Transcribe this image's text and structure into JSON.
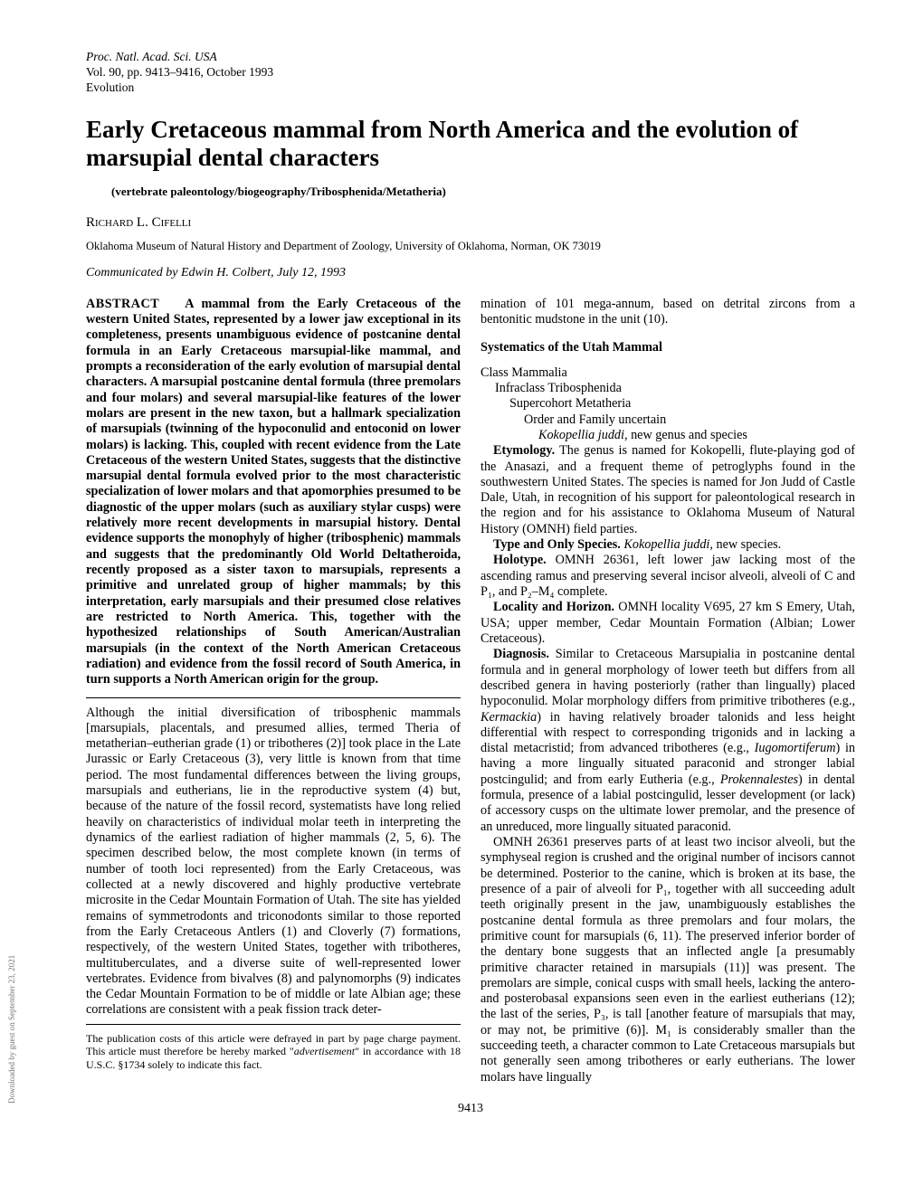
{
  "header": {
    "journal": "Proc. Natl. Acad. Sci. USA",
    "volume": "Vol. 90, pp. 9413–9416, October 1993",
    "section": "Evolution"
  },
  "title": "Early Cretaceous mammal from North America and the evolution of marsupial dental characters",
  "keywords": "(vertebrate paleontology/biogeography/Tribosphenida/Metatheria)",
  "author": "Richard L. Cifelli",
  "affiliation": "Oklahoma Museum of Natural History and Department of Zoology, University of Oklahoma, Norman, OK 73019",
  "communicated": "Communicated by Edwin H. Colbert, July 12, 1993",
  "abstract": {
    "label": "ABSTRACT",
    "text": "A mammal from the Early Cretaceous of the western United States, represented by a lower jaw exceptional in its completeness, presents unambiguous evidence of postcanine dental formula in an Early Cretaceous marsupial-like mammal, and prompts a reconsideration of the early evolution of marsupial dental characters. A marsupial postcanine dental formula (three premolars and four molars) and several marsupial-like features of the lower molars are present in the new taxon, but a hallmark specialization of marsupials (twinning of the hypoconulid and entoconid on lower molars) is lacking. This, coupled with recent evidence from the Late Cretaceous of the western United States, suggests that the distinctive marsupial dental formula evolved prior to the most characteristic specialization of lower molars and that apomorphies presumed to be diagnostic of the upper molars (such as auxiliary stylar cusps) were relatively more recent developments in marsupial history. Dental evidence supports the monophyly of higher (tribosphenic) mammals and suggests that the predominantly Old World Deltatheroida, recently proposed as a sister taxon to marsupials, represents a primitive and unrelated group of higher mammals; by this interpretation, early marsupials and their presumed close relatives are restricted to North America. This, together with the hypothesized relationships of South American/Australian marsupials (in the context of the North American Cretaceous radiation) and evidence from the fossil record of South America, in turn supports a North American origin for the group."
  },
  "intro": "Although the initial diversification of tribosphenic mammals [marsupials, placentals, and presumed allies, termed Theria of metatherian–eutherian grade (1) or tribotheres (2)] took place in the Late Jurassic or Early Cretaceous (3), very little is known from that time period. The most fundamental differences between the living groups, marsupials and eutherians, lie in the reproductive system (4) but, because of the nature of the fossil record, systematists have long relied heavily on characteristics of individual molar teeth in interpreting the dynamics of the earliest radiation of higher mammals (2, 5, 6). The specimen described below, the most complete known (in terms of number of tooth loci represented) from the Early Cretaceous, was collected at a newly discovered and highly productive vertebrate microsite in the Cedar Mountain Formation of Utah. The site has yielded remains of symmetrodonts and triconodonts similar to those reported from the Early Cretaceous Antlers (1) and Cloverly (7) formations, respectively, of the western United States, together with tribotheres, multituberculates, and a diverse suite of well-represented lower vertebrates. Evidence from bivalves (8) and palynomorphs (9) indicates the Cedar Mountain Formation to be of middle or late Albian age; these correlations are consistent with a peak fission track deter-",
  "col2_top": "mination of 101 mega-annum, based on detrital zircons from a bentonitic mudstone in the unit (10).",
  "systematics_head": "Systematics of the Utah Mammal",
  "taxonomy": {
    "l1": "Class Mammalia",
    "l2": "Infraclass Tribosphenida",
    "l3": "Supercohort Metatheria",
    "l4": "Order and Family uncertain",
    "l5_species": "Kokopellia juddi,",
    "l5_rest": " new genus and species"
  },
  "etymology": {
    "head": "Etymology.",
    "text": " The genus is named for Kokopelli, flute-playing god of the Anasazi, and a frequent theme of petroglyphs found in the southwestern United States. The species is named for Jon Judd of Castle Dale, Utah, in recognition of his support for paleontological research in the region and for his assistance to Oklahoma Museum of Natural History (OMNH) field parties."
  },
  "typespecies": {
    "head": "Type and Only Species.",
    "text_pre": " ",
    "species": "Kokopellia juddi",
    "text_post": ", new species."
  },
  "holotype": {
    "head": "Holotype.",
    "text": " OMNH 26361, left lower jaw lacking most of the ascending ramus and preserving several incisor alveoli, alveoli of C and P₁, and P₂–M₄ complete."
  },
  "locality": {
    "head": "Locality and Horizon.",
    "text": " OMNH locality V695, 27 km S Emery, Utah, USA; upper member, Cedar Mountain Formation (Albian; Lower Cretaceous)."
  },
  "diagnosis": {
    "head": "Diagnosis.",
    "text_a": " Similar to Cretaceous Marsupialia in postcanine dental formula and in general morphology of lower teeth but differs from all described genera in having posteriorly (rather than lingually) placed hypoconulid. Molar morphology differs from primitive tribotheres (e.g., ",
    "sp1": "Kermackia",
    "text_b": ") in having relatively broader talonids and less height differential with respect to corresponding trigonids and in lacking a distal metacristid; from advanced tribotheres (e.g., ",
    "sp2": "Iugomortiferum",
    "text_c": ") in having a more lingually situated paraconid and stronger labial postcingulid; and from early Eutheria (e.g., ",
    "sp3": "Prokennalestes",
    "text_d": ") in dental formula, presence of a labial postcingulid, lesser development (or lack) of accessory cusps on the ultimate lower premolar, and the presence of an unreduced, more lingually situated paraconid."
  },
  "omnh_para": "OMNH 26361 preserves parts of at least two incisor alveoli, but the symphyseal region is crushed and the original number of incisors cannot be determined. Posterior to the canine, which is broken at its base, the presence of a pair of alveoli for P₁, together with all succeeding adult teeth originally present in the jaw, unambiguously establishes the postcanine dental formula as three premolars and four molars, the primitive count for marsupials (6, 11). The preserved inferior border of the dentary bone suggests that an inflected angle [a presumably primitive character retained in marsupials (11)] was present. The premolars are simple, conical cusps with small heels, lacking the antero- and posterobasal expansions seen even in the earliest eutherians (12); the last of the series, P₃, is tall [another feature of marsupials that may, or may not, be primitive (6)]. M₁ is considerably smaller than the succeeding teeth, a character common to Late Cretaceous marsupials but not generally seen among tribotheres or early eutherians. The lower molars have lingually",
  "footnote": {
    "text_a": "The publication costs of this article were defrayed in part by page charge payment. This article must therefore be hereby marked \"",
    "adv": "advertisement",
    "text_b": "\" in accordance with 18 U.S.C. §1734 solely to indicate this fact."
  },
  "page_number": "9413",
  "side_label": "Downloaded by guest on September 23, 2021"
}
